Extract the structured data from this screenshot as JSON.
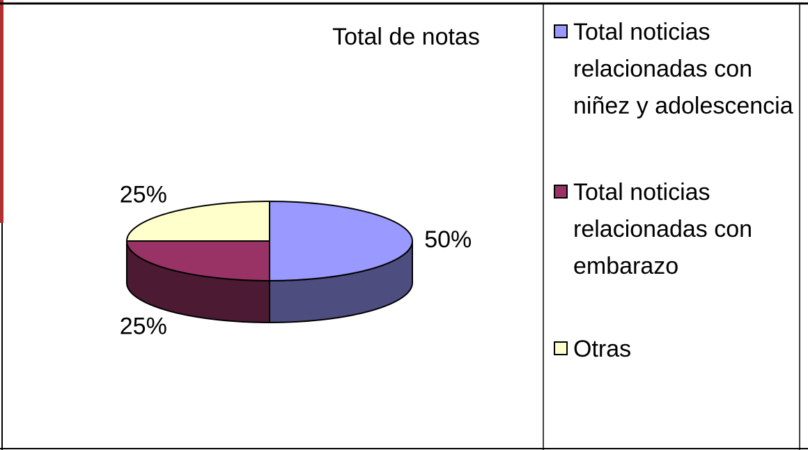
{
  "chart_data": {
    "type": "pie",
    "title": "Total de notas",
    "categories": [
      "Total noticias relacionadas con niñez y adolescencia",
      "Total noticias relacionadas con embarazo",
      "Otras"
    ],
    "values": [
      50,
      25,
      25
    ],
    "value_labels": [
      "50%",
      "25%",
      "25%"
    ],
    "colors": [
      "#9999ff",
      "#993366",
      "#ffffcc"
    ]
  }
}
